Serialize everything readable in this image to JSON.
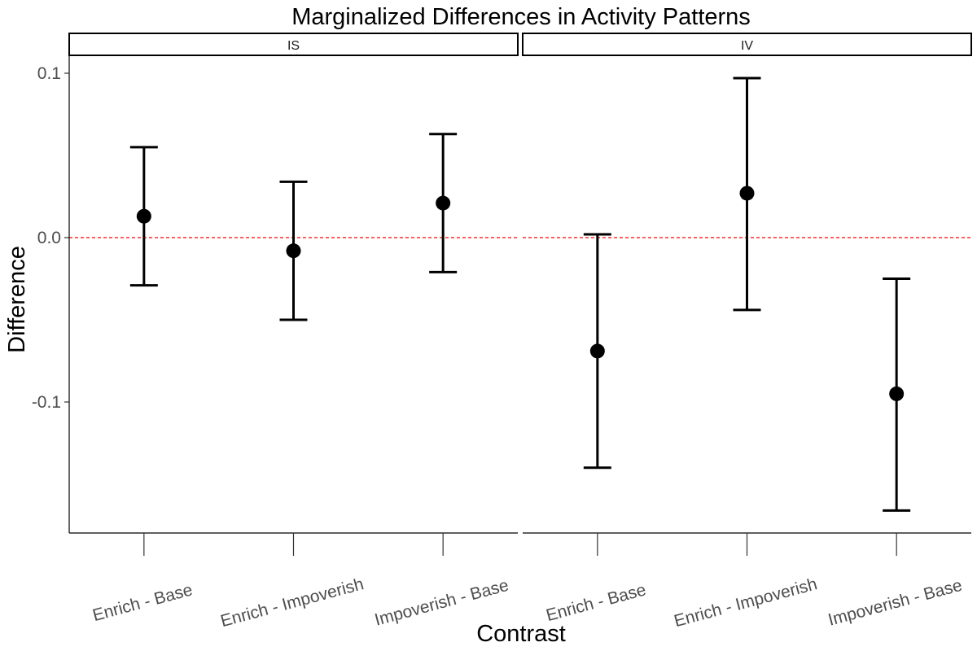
{
  "chart_data": {
    "type": "scatter",
    "subtype": "point-with-errorbars",
    "title": "Marginalized Differences in Activity Patterns",
    "xlabel": "Contrast",
    "ylabel": "Difference",
    "ylim": [
      -0.18,
      0.1
    ],
    "yticks": [
      -0.1,
      0.0,
      0.1
    ],
    "ytick_labels": [
      "-0.1",
      "0.0",
      "0.1"
    ],
    "categories": [
      "Enrich - Base",
      "Enrich - Impoverish",
      "Impoverish - Base"
    ],
    "reference_line": {
      "y": 0,
      "color": "#ff0000",
      "style": "dashed"
    },
    "grid": false,
    "colors": {
      "points": "#000000",
      "errorbars": "#000000",
      "reference": "#ff0000"
    },
    "panels": [
      {
        "label": "IS",
        "points": [
          {
            "category": "Enrich - Base",
            "estimate": 0.013,
            "lower": -0.029,
            "upper": 0.055
          },
          {
            "category": "Enrich - Impoverish",
            "estimate": -0.008,
            "lower": -0.05,
            "upper": 0.034
          },
          {
            "category": "Impoverish - Base",
            "estimate": 0.021,
            "lower": -0.021,
            "upper": 0.063
          }
        ]
      },
      {
        "label": "IV",
        "points": [
          {
            "category": "Enrich - Base",
            "estimate": -0.069,
            "lower": -0.14,
            "upper": 0.002
          },
          {
            "category": "Enrich - Impoverish",
            "estimate": 0.027,
            "lower": -0.044,
            "upper": 0.097
          },
          {
            "category": "Impoverish - Base",
            "estimate": -0.095,
            "lower": -0.166,
            "upper": -0.025
          }
        ]
      }
    ]
  }
}
